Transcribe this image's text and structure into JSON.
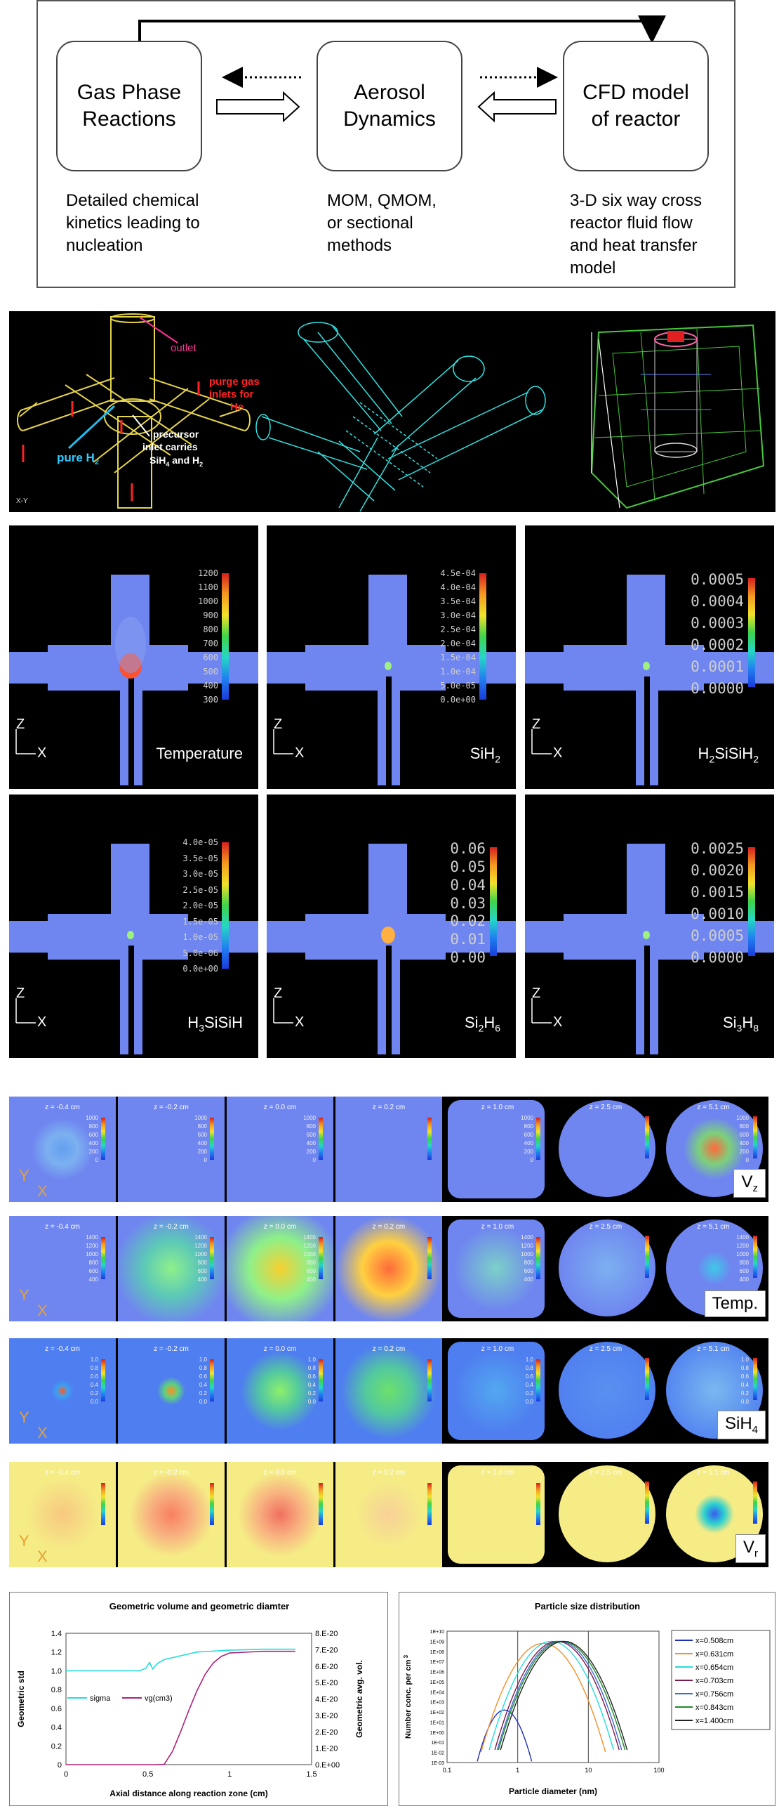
{
  "flow": {
    "box1": "Gas Phase\nReactions",
    "box2": "Aerosol\nDynamics",
    "box3": "CFD model\nof reactor",
    "desc1": "Detailed chemical\nkinetics leading to\nnucleation",
    "desc2": "MOM, QMOM,\nor sectional\nmethods",
    "desc3": "3-D six way cross\nreactor fluid flow\nand heat transfer\nmodel"
  },
  "geometry": {
    "outlet": "outlet",
    "purge_line1": "purge gas",
    "purge_line2": "inlets for",
    "purge_line3": "He",
    "pure_h2": "pure H",
    "pure_h2_sub": "2",
    "precursor_line1": "precursor",
    "precursor_line2": "inlet carries",
    "precursor_line3a": "SiH",
    "precursor_line3b": "4",
    "precursor_line3c": " and H",
    "precursor_line3d": "2"
  },
  "contours": [
    {
      "label": "Temperature",
      "sub": "",
      "ticks": [
        "1200",
        "1100",
        "1000",
        "900",
        "800",
        "700",
        "600",
        "500",
        "400",
        "300"
      ],
      "style": "small",
      "hot": "hot"
    },
    {
      "label": "SiH",
      "sub": "2",
      "ticks": [
        "4.5e-04",
        "4.0e-04",
        "3.5e-04",
        "3.0e-04",
        "2.5e-04",
        "2.0e-04",
        "1.5e-04",
        "1.0e-04",
        "5.0e-05",
        "0.0e+00"
      ],
      "style": "small",
      "hot": "weak"
    },
    {
      "label": "H",
      "sub": "2",
      "label2": "SiSiH",
      "sub2": "2",
      "ticks": [
        "0.0005",
        "0.0004",
        "0.0003",
        "0.0002",
        "0.0001",
        "0.0000"
      ],
      "style": "large",
      "hot": "weak"
    },
    {
      "label": "H",
      "sub": "3",
      "label2": "SiSiH",
      "sub2": "",
      "ticks": [
        "4.0e-05",
        "3.5e-05",
        "3.0e-05",
        "2.5e-05",
        "2.0e-05",
        "1.5e-05",
        "1.0e-05",
        "5.0e-06",
        "0.0e+00"
      ],
      "style": "small",
      "hot": "weak"
    },
    {
      "label": "Si",
      "sub": "2",
      "label2": "H",
      "sub2": "6",
      "ticks": [
        "0.06",
        "0.05",
        "0.04",
        "0.03",
        "0.02",
        "0.01",
        "0.00"
      ],
      "style": "large",
      "hot": "mid"
    },
    {
      "label": "Si",
      "sub": "3",
      "label2": "H",
      "sub2": "8",
      "ticks": [
        "0.0025",
        "0.0020",
        "0.0015",
        "0.0010",
        "0.0005",
        "0.0000"
      ],
      "style": "large",
      "hot": "weak"
    }
  ],
  "axis_z": "Z",
  "axis_x": "X",
  "slices": {
    "z_labels": [
      "z = -0.4 cm",
      "z = -0.2 cm",
      "z = 0.0 cm",
      "z = 0.2 cm",
      "z = 1.0 cm",
      "z = 2.5 cm",
      "z = 5.1 cm"
    ],
    "rows": [
      {
        "label": "V",
        "sub": "z",
        "bg": "#6f86f0",
        "scale": [
          "1000",
          "800",
          "600",
          "400",
          "200",
          "0"
        ]
      },
      {
        "label": "Temp.",
        "sub": "",
        "bg": "#6f86f0",
        "scale": [
          "1400",
          "1200",
          "1000",
          "800",
          "600",
          "400"
        ]
      },
      {
        "label": "SiH",
        "sub": "4",
        "bg": "#4f7ef0",
        "scale": [
          "1.0",
          "0.8",
          "0.6",
          "0.4",
          "0.2",
          "0.0"
        ]
      },
      {
        "label": "V",
        "sub": "r",
        "bg": "#f5ec86",
        "scale": [
          "",
          "",
          "",
          "",
          "",
          ""
        ]
      }
    ],
    "axis_y": "Y",
    "axis_x": "X"
  },
  "chart_data": [
    {
      "type": "line",
      "title": "Geometric volume and geometric diamter",
      "xlabel": "Axial distance along reaction zone (cm)",
      "ylabel": "Geometric std",
      "y2label": "Geometric avg. vol.",
      "xlim": [
        0,
        1.5
      ],
      "ylim": [
        0,
        1.4
      ],
      "y2lim": [
        0,
        8e-20
      ],
      "xticks": [
        "0",
        "0.5",
        "1",
        "1.5"
      ],
      "yticks": [
        "0",
        "0.2",
        "0.4",
        "0.6",
        "0.8",
        "1.0",
        "1.2",
        "1.4"
      ],
      "y2ticks": [
        "0.E+00",
        "1.E-20",
        "2.E-20",
        "3.E-20",
        "4.E-20",
        "5.E-20",
        "6.E-20",
        "7.E-20",
        "8.E-20"
      ],
      "series": [
        {
          "name": "sigma",
          "color": "#22dddd",
          "axis": "left",
          "x": [
            0,
            0.3,
            0.45,
            0.49,
            0.51,
            0.53,
            0.56,
            0.6,
            0.65,
            0.7,
            0.75,
            0.8,
            0.9,
            1.0,
            1.2,
            1.4
          ],
          "y": [
            1.0,
            1.0,
            1.0,
            1.03,
            1.09,
            1.02,
            1.08,
            1.12,
            1.14,
            1.16,
            1.18,
            1.2,
            1.21,
            1.22,
            1.23,
            1.23
          ]
        },
        {
          "name": "vg(cm3)",
          "color": "#aa2277",
          "axis": "right",
          "x": [
            0,
            0.3,
            0.55,
            0.6,
            0.65,
            0.7,
            0.75,
            0.8,
            0.85,
            0.9,
            0.95,
            1.0,
            1.1,
            1.2,
            1.4
          ],
          "y": [
            0,
            0,
            0,
            2e-22,
            8e-21,
            2e-20,
            3.3e-20,
            4.5e-20,
            5.5e-20,
            6.2e-20,
            6.6e-20,
            6.8e-20,
            6.85e-20,
            6.9e-20,
            6.9e-20
          ]
        }
      ]
    },
    {
      "type": "line",
      "title": "Particle size distribution",
      "xlabel": "Particle diameter (nm)",
      "ylabel": "Number conc. per cm",
      "ylabel_sup": "3",
      "xscale": "log",
      "yscale": "log",
      "xlim": [
        0.1,
        100
      ],
      "ylim": [
        1e-23,
        10000000000.0
      ],
      "xticks": [
        "0.1",
        "1",
        "10",
        "100"
      ],
      "yticks": [
        "1E+10",
        "1E+09",
        "1E+08",
        "1E+07",
        "1E+06",
        "1E+05",
        "1E+04",
        "1E+03",
        "1E+02",
        "1E+01",
        "1E+00",
        "1E-01",
        "1E-02",
        "1E-03"
      ],
      "series": [
        {
          "name": "x=0.508cm",
          "color": "#1f2fb8",
          "peak_d": 0.65,
          "peak_logn": 2.2,
          "width": 0.35
        },
        {
          "name": "x=0.631cm",
          "color": "#f2902a",
          "peak_d": 2.3,
          "peak_logn": 8.8,
          "width": 0.55
        },
        {
          "name": "x=0.654cm",
          "color": "#22dddd",
          "peak_d": 3.0,
          "peak_logn": 9.0,
          "width": 0.55
        },
        {
          "name": "x=0.703cm",
          "color": "#7a1a4a",
          "peak_d": 3.6,
          "peak_logn": 9.0,
          "width": 0.55
        },
        {
          "name": "x=0.756cm",
          "color": "#3a6bd8",
          "peak_d": 3.9,
          "peak_logn": 9.0,
          "width": 0.55
        },
        {
          "name": "x=0.843cm",
          "color": "#1e8a2a",
          "peak_d": 4.2,
          "peak_logn": 9.0,
          "width": 0.56
        },
        {
          "name": "x=1.400cm",
          "color": "#222222",
          "peak_d": 4.5,
          "peak_logn": 9.0,
          "width": 0.56
        }
      ]
    }
  ]
}
